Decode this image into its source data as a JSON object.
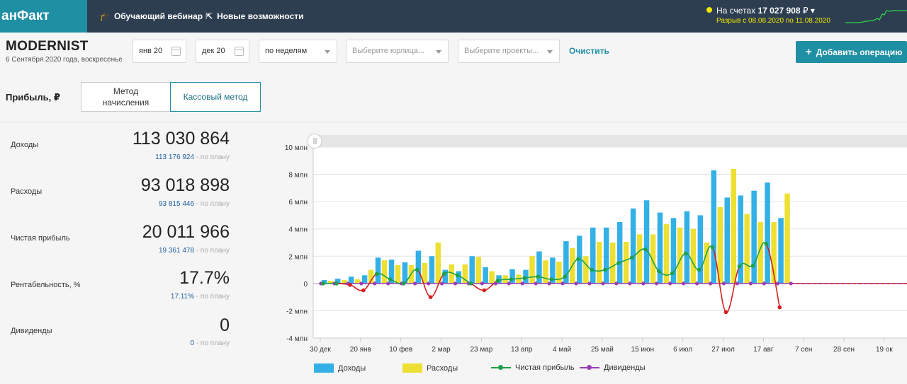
{
  "topbar": {
    "logo": "анФакт",
    "nav": [
      {
        "label": "Обучающий вебинар",
        "icon": "graduation-cap-icon"
      },
      {
        "label": "Новые возможности",
        "icon": "cursor-pointer-icon"
      }
    ],
    "accounts": {
      "label": "На счетах",
      "amount": "17 027 908",
      "currency": "₽",
      "gap_text": "Разрыв с 08.08.2020 по 11.08.2020"
    }
  },
  "filters": {
    "company": "MODERNIST",
    "date": "6 Сентября 2020 года, воскресенье",
    "date_from": "янв 20",
    "date_to": "дек 20",
    "period": "по неделям",
    "legal_entity_placeholder": "Выберите юрлица...",
    "projects_placeholder": "Выберите проекты...",
    "clear_label": "Очистить",
    "add_label": "Добавить операцию"
  },
  "profit": {
    "title": "Прибыль, ₽",
    "methods": [
      {
        "label": "Метод начисления",
        "active": false
      },
      {
        "label": "Кассовый метод",
        "active": true
      }
    ]
  },
  "metrics": [
    {
      "label": "Доходы",
      "value": "113 030 864",
      "plan": "113 176 924",
      "plan_suffix": "- по плану"
    },
    {
      "label": "Расходы",
      "value": "93 018 898",
      "plan": "93 815 446",
      "plan_suffix": "- по плану"
    },
    {
      "label": "Чистая прибыль",
      "value": "20 011 966",
      "plan": "19 361 478",
      "plan_suffix": "- по плану"
    },
    {
      "label": "Рентабельность, %",
      "value": "17.7%",
      "plan": "17.11%",
      "plan_suffix": "- по плану"
    },
    {
      "label": "Дивиденды",
      "value": "0",
      "plan": "0",
      "plan_suffix": "- по плану"
    }
  ],
  "colors": {
    "income": "#33b0e6",
    "expense": "#ede032",
    "profit": "#1ea04a",
    "profit_negative": "#d42020",
    "dividends": "#9a3fb8",
    "accent": "#1f8fa3"
  },
  "chart_data": {
    "type": "bar",
    "y_ticks": [
      "10 млн",
      "8 млн",
      "6 млн",
      "4 млн",
      "2 млн",
      "0",
      "-2 млн",
      "-4 млн"
    ],
    "ylim": [
      -4,
      10
    ],
    "x_labels": [
      "30 дек",
      "20 янв",
      "10 фев",
      "2 мар",
      "23 мар",
      "13 апр",
      "4 май",
      "25 май",
      "15 июн",
      "6 июл",
      "27 июл",
      "17 авг",
      "7 сен",
      "28 сен",
      "19 ок"
    ],
    "weeks": 36,
    "series": [
      {
        "name": "Доходы",
        "kind": "bar",
        "values": [
          0.25,
          0.35,
          0.5,
          0.6,
          1.9,
          1.75,
          1.55,
          2.4,
          2.0,
          1.0,
          0.9,
          2.0,
          1.2,
          0.6,
          1.05,
          1.0,
          2.35,
          1.9,
          3.1,
          3.5,
          4.1,
          4.1,
          4.5,
          5.5,
          6.1,
          5.2,
          4.8,
          5.3,
          5.0,
          8.3,
          6.3,
          6.45,
          6.8,
          7.4,
          4.8,
          0
        ],
        "unit": "млн"
      },
      {
        "name": "Расходы",
        "kind": "bar",
        "values": [
          0.2,
          0.25,
          0.3,
          1.0,
          1.7,
          1.35,
          1.35,
          1.5,
          3.0,
          1.4,
          1.4,
          1.95,
          0.9,
          0.6,
          0.65,
          2.0,
          1.7,
          1.6,
          2.6,
          2.0,
          3.05,
          3.0,
          3.05,
          3.6,
          3.6,
          4.35,
          4.1,
          4.0,
          3.0,
          5.6,
          8.4,
          5.1,
          4.5,
          4.5,
          6.6,
          0
        ],
        "unit": "млн"
      },
      {
        "name": "Чистая прибыль",
        "kind": "line",
        "values": [
          0.0,
          0.0,
          -0.1,
          -0.5,
          0.7,
          0.3,
          0.0,
          1.0,
          -1.0,
          0.7,
          0.6,
          0.0,
          -0.5,
          0.2,
          0.3,
          0.4,
          0.5,
          0.3,
          0.5,
          1.8,
          1.0,
          1.0,
          1.5,
          1.9,
          2.5,
          0.9,
          0.75,
          2.2,
          1.0,
          2.65,
          -2.1,
          1.25,
          1.3,
          2.9,
          -1.75,
          null
        ],
        "unit": "млн"
      },
      {
        "name": "Дивиденды",
        "kind": "line",
        "values": [
          0,
          0,
          0,
          0,
          0,
          0,
          0,
          0,
          0,
          0,
          0,
          0,
          0,
          0,
          0,
          0,
          0,
          0,
          0,
          0,
          0,
          0,
          0,
          0,
          0,
          0,
          0,
          0,
          0,
          0,
          0,
          0,
          0,
          0,
          0,
          0
        ],
        "unit": "млн"
      }
    ],
    "legend": [
      "Доходы",
      "Расходы",
      "Чистая прибыль",
      "Дивиденды"
    ],
    "legend_placement": "bottom"
  }
}
